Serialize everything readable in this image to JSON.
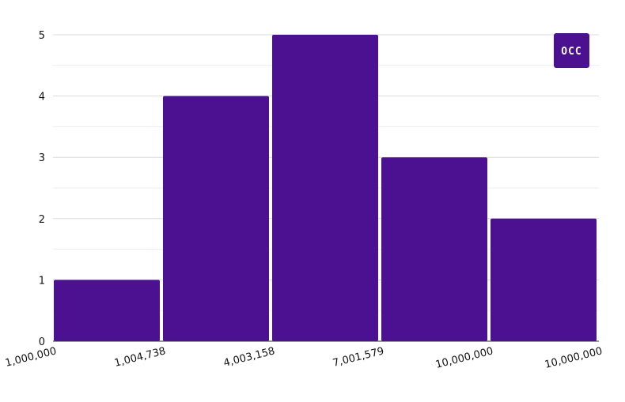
{
  "logo": {
    "text": "OCC",
    "color": "#4b1191"
  },
  "chart_data": {
    "type": "bar",
    "subtype": "histogram",
    "bin_edges": [
      "1,000,000",
      "1,004,738",
      "4,003,158",
      "7,001,579",
      "10,000,000",
      "10,000,000"
    ],
    "values": [
      1,
      4,
      5,
      3,
      2
    ],
    "y_ticks": [
      "0",
      "1",
      "2",
      "3",
      "4",
      "5"
    ],
    "ylim": [
      0,
      5
    ],
    "grid": true,
    "bar_color": "#4b1191",
    "title": "",
    "xlabel": "",
    "ylabel": ""
  }
}
